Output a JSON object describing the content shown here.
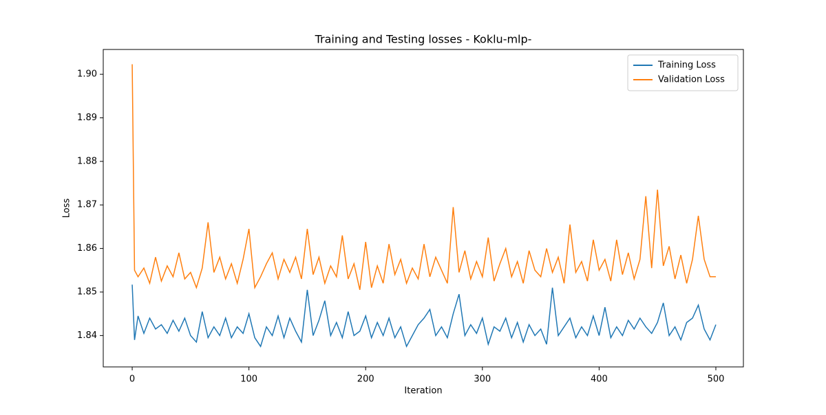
{
  "chart_data": {
    "type": "line",
    "title": "Training and Testing losses - Koklu-mlp-",
    "x_label": "Iteration",
    "y_label": "Loss",
    "x": [
      0,
      2,
      5,
      10,
      15,
      20,
      25,
      30,
      35,
      40,
      45,
      50,
      55,
      60,
      65,
      70,
      75,
      80,
      85,
      90,
      95,
      100,
      105,
      110,
      115,
      120,
      125,
      130,
      135,
      140,
      145,
      150,
      155,
      160,
      165,
      170,
      175,
      180,
      185,
      190,
      195,
      200,
      205,
      210,
      215,
      220,
      225,
      230,
      235,
      240,
      245,
      250,
      255,
      260,
      265,
      270,
      275,
      280,
      285,
      290,
      295,
      300,
      305,
      310,
      315,
      320,
      325,
      330,
      335,
      340,
      345,
      350,
      355,
      360,
      365,
      370,
      375,
      380,
      385,
      390,
      395,
      400,
      405,
      410,
      415,
      420,
      425,
      430,
      435,
      440,
      445,
      450,
      455,
      460,
      465,
      470,
      475,
      480,
      485,
      490,
      495,
      500
    ],
    "series": [
      {
        "name": "Training Loss",
        "color": "#1f77b4",
        "values": [
          1.8517,
          1.839,
          1.8445,
          1.8405,
          1.844,
          1.8415,
          1.8425,
          1.8405,
          1.8435,
          1.841,
          1.844,
          1.84,
          1.8385,
          1.8455,
          1.8395,
          1.842,
          1.84,
          1.844,
          1.8395,
          1.842,
          1.8405,
          1.845,
          1.8395,
          1.8375,
          1.842,
          1.84,
          1.8445,
          1.8395,
          1.844,
          1.841,
          1.8385,
          1.8505,
          1.84,
          1.8435,
          1.848,
          1.84,
          1.843,
          1.8395,
          1.8455,
          1.84,
          1.841,
          1.8445,
          1.8395,
          1.843,
          1.84,
          1.844,
          1.8395,
          1.842,
          1.8375,
          1.84,
          1.8425,
          1.844,
          1.846,
          1.84,
          1.842,
          1.8395,
          1.845,
          1.8495,
          1.84,
          1.8425,
          1.8405,
          1.844,
          1.838,
          1.842,
          1.841,
          1.844,
          1.8395,
          1.843,
          1.8385,
          1.8425,
          1.84,
          1.8415,
          1.838,
          1.851,
          1.84,
          1.842,
          1.844,
          1.8395,
          1.842,
          1.84,
          1.8445,
          1.84,
          1.8465,
          1.8395,
          1.842,
          1.84,
          1.8435,
          1.8415,
          1.844,
          1.842,
          1.8405,
          1.843,
          1.8475,
          1.84,
          1.842,
          1.839,
          1.843,
          1.844,
          1.847,
          1.8415,
          1.839,
          1.8425
        ]
      },
      {
        "name": "Validation Loss",
        "color": "#ff7f0e",
        "values": [
          1.9023,
          1.855,
          1.8535,
          1.8555,
          1.852,
          1.858,
          1.8525,
          1.856,
          1.8535,
          1.859,
          1.853,
          1.8545,
          1.851,
          1.8555,
          1.866,
          1.8545,
          1.858,
          1.853,
          1.8565,
          1.852,
          1.8575,
          1.8645,
          1.851,
          1.8535,
          1.8565,
          1.859,
          1.853,
          1.8575,
          1.8545,
          1.858,
          1.853,
          1.8645,
          1.854,
          1.858,
          1.852,
          1.856,
          1.8535,
          1.863,
          1.853,
          1.8565,
          1.8505,
          1.8615,
          1.851,
          1.856,
          1.852,
          1.861,
          1.854,
          1.8575,
          1.852,
          1.8555,
          1.853,
          1.861,
          1.8535,
          1.858,
          1.855,
          1.852,
          1.8695,
          1.8545,
          1.8595,
          1.853,
          1.857,
          1.8535,
          1.8625,
          1.8525,
          1.8565,
          1.86,
          1.8535,
          1.857,
          1.852,
          1.8595,
          1.855,
          1.8535,
          1.86,
          1.8545,
          1.858,
          1.852,
          1.8655,
          1.8545,
          1.857,
          1.8525,
          1.862,
          1.855,
          1.8575,
          1.8525,
          1.862,
          1.854,
          1.859,
          1.853,
          1.8575,
          1.872,
          1.8555,
          1.8735,
          1.856,
          1.8605,
          1.853,
          1.8585,
          1.852,
          1.8575,
          1.8675,
          1.8575,
          1.8535,
          1.8535
        ]
      }
    ],
    "xlim": [
      -24.8,
      523.6
    ],
    "ylim": [
      1.8328,
      1.9057
    ],
    "xticks": [
      0,
      100,
      200,
      300,
      400,
      500
    ],
    "yticks": [
      1.84,
      1.85,
      1.86,
      1.87,
      1.88,
      1.89,
      {
        "value": 1.9,
        "label": "1.90"
      }
    ],
    "legend": "upper right"
  }
}
